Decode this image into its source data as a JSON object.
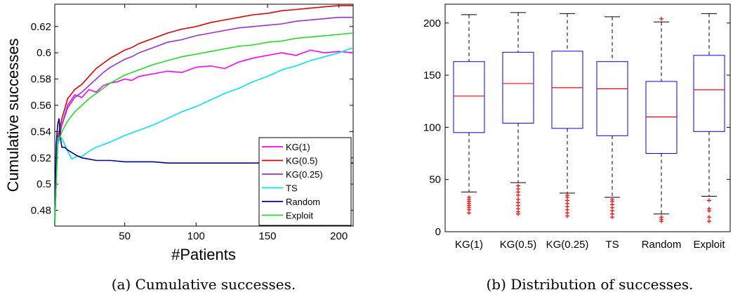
{
  "captions": {
    "a": "(a)  Cumulative successes.",
    "b": "(b)  Distribution of successes."
  },
  "chart_data": [
    {
      "type": "line",
      "xlabel": "#Patients",
      "ylabel": "Cumulative successes",
      "xlim": [
        1,
        210
      ],
      "ylim": [
        0.468,
        0.637
      ],
      "xticks": [
        "50",
        "100",
        "150",
        "200"
      ],
      "yticks": [
        "0.48",
        "0.5",
        "0.52",
        "0.54",
        "0.56",
        "0.58",
        "0.6",
        "0.62"
      ],
      "legend_position": "bottom-right",
      "series": [
        {
          "name": "KG(1)",
          "color": "#ff00ff",
          "x": [
            1,
            3,
            6,
            10,
            15,
            20,
            25,
            30,
            35,
            40,
            45,
            50,
            55,
            60,
            70,
            80,
            90,
            100,
            110,
            120,
            130,
            140,
            150,
            160,
            170,
            180,
            190,
            200,
            210
          ],
          "y": [
            0.47,
            0.535,
            0.545,
            0.56,
            0.568,
            0.566,
            0.572,
            0.57,
            0.575,
            0.577,
            0.578,
            0.58,
            0.579,
            0.582,
            0.584,
            0.586,
            0.585,
            0.589,
            0.59,
            0.588,
            0.593,
            0.596,
            0.598,
            0.6,
            0.598,
            0.602,
            0.6,
            0.601,
            0.6
          ]
        },
        {
          "name": "KG(0.5)",
          "color": "#e60000",
          "x": [
            1,
            3,
            6,
            10,
            15,
            20,
            25,
            30,
            35,
            40,
            45,
            50,
            55,
            60,
            70,
            80,
            90,
            100,
            110,
            120,
            130,
            140,
            150,
            160,
            170,
            180,
            190,
            200,
            210
          ],
          "y": [
            0.47,
            0.535,
            0.55,
            0.565,
            0.572,
            0.576,
            0.582,
            0.588,
            0.592,
            0.596,
            0.599,
            0.602,
            0.604,
            0.607,
            0.611,
            0.615,
            0.618,
            0.62,
            0.623,
            0.625,
            0.627,
            0.629,
            0.63,
            0.632,
            0.633,
            0.634,
            0.635,
            0.636,
            0.636
          ]
        },
        {
          "name": "KG(0.25)",
          "color": "#9b30d9",
          "x": [
            1,
            3,
            6,
            10,
            15,
            20,
            25,
            30,
            35,
            40,
            45,
            50,
            55,
            60,
            70,
            80,
            90,
            100,
            110,
            120,
            130,
            140,
            150,
            160,
            170,
            180,
            190,
            200,
            210
          ],
          "y": [
            0.47,
            0.53,
            0.545,
            0.558,
            0.566,
            0.57,
            0.575,
            0.58,
            0.585,
            0.589,
            0.592,
            0.595,
            0.597,
            0.6,
            0.604,
            0.608,
            0.61,
            0.613,
            0.615,
            0.617,
            0.619,
            0.62,
            0.621,
            0.622,
            0.624,
            0.625,
            0.626,
            0.627,
            0.627
          ]
        },
        {
          "name": "TS",
          "color": "#00e5ee",
          "x": [
            1,
            3,
            6,
            10,
            13,
            16,
            20,
            25,
            30,
            40,
            50,
            60,
            70,
            80,
            90,
            100,
            110,
            120,
            130,
            140,
            150,
            160,
            170,
            180,
            190,
            200,
            210
          ],
          "y": [
            0.47,
            0.535,
            0.535,
            0.525,
            0.519,
            0.521,
            0.521,
            0.525,
            0.528,
            0.532,
            0.537,
            0.541,
            0.545,
            0.55,
            0.555,
            0.559,
            0.564,
            0.569,
            0.573,
            0.578,
            0.582,
            0.587,
            0.59,
            0.594,
            0.597,
            0.6,
            0.604
          ]
        },
        {
          "name": "Random",
          "color": "#00009c",
          "x": [
            1,
            2,
            3,
            4,
            5,
            6,
            8,
            10,
            13,
            16,
            20,
            25,
            30,
            40,
            50,
            60,
            70,
            80,
            90,
            100,
            120,
            140,
            160,
            180,
            200,
            210
          ],
          "y": [
            0.47,
            0.53,
            0.545,
            0.55,
            0.535,
            0.528,
            0.528,
            0.526,
            0.524,
            0.522,
            0.52,
            0.519,
            0.518,
            0.518,
            0.517,
            0.517,
            0.517,
            0.516,
            0.516,
            0.516,
            0.516,
            0.516,
            0.516,
            0.516,
            0.516,
            0.516
          ]
        },
        {
          "name": "Exploit",
          "color": "#22dd22",
          "x": [
            1,
            3,
            6,
            10,
            15,
            20,
            25,
            30,
            35,
            40,
            45,
            50,
            55,
            60,
            70,
            80,
            90,
            100,
            110,
            120,
            130,
            140,
            150,
            160,
            170,
            180,
            190,
            200,
            210
          ],
          "y": [
            0.47,
            0.53,
            0.54,
            0.548,
            0.555,
            0.56,
            0.565,
            0.569,
            0.573,
            0.577,
            0.58,
            0.583,
            0.585,
            0.587,
            0.591,
            0.594,
            0.597,
            0.599,
            0.601,
            0.603,
            0.605,
            0.606,
            0.608,
            0.609,
            0.611,
            0.612,
            0.613,
            0.614,
            0.615
          ]
        }
      ]
    },
    {
      "type": "box",
      "ylim": [
        0,
        218
      ],
      "yticks": [
        "0",
        "50",
        "100",
        "150",
        "200"
      ],
      "categories": [
        "KG(1)",
        "KG(0.5)",
        "KG(0.25)",
        "TS",
        "Random",
        "Exploit"
      ],
      "colors": {
        "box": "#0000ff",
        "median": "#ff0000",
        "whisker": "#000000",
        "outlier": "#ff0000"
      },
      "boxes": [
        {
          "name": "KG(1)",
          "whislo": 38,
          "q1": 95,
          "med": 130,
          "q3": 163,
          "whishi": 208,
          "fliers": [
            18,
            21,
            23,
            25,
            27,
            29,
            31,
            33
          ]
        },
        {
          "name": "KG(0.5)",
          "whislo": 47,
          "q1": 104,
          "med": 142,
          "q3": 172,
          "whishi": 210,
          "fliers": [
            17,
            19,
            22,
            25,
            28,
            31,
            35,
            38,
            41,
            44
          ]
        },
        {
          "name": "KG(0.25)",
          "whislo": 37,
          "q1": 99,
          "med": 138,
          "q3": 173,
          "whishi": 209,
          "fliers": [
            15,
            18,
            21,
            24,
            27,
            30,
            33,
            35
          ]
        },
        {
          "name": "TS",
          "whislo": 33,
          "q1": 92,
          "med": 137,
          "q3": 163,
          "whishi": 206,
          "fliers": [
            14,
            17,
            20,
            23,
            26,
            29,
            31
          ]
        },
        {
          "name": "Random",
          "whislo": 17,
          "q1": 75,
          "med": 110,
          "q3": 144,
          "whishi": 201,
          "fliers": [
            10,
            12,
            14,
            204
          ]
        },
        {
          "name": "Exploit",
          "whislo": 34,
          "q1": 96,
          "med": 136,
          "q3": 169,
          "whishi": 209,
          "fliers": [
            10,
            14,
            20,
            22,
            30
          ]
        }
      ]
    }
  ]
}
